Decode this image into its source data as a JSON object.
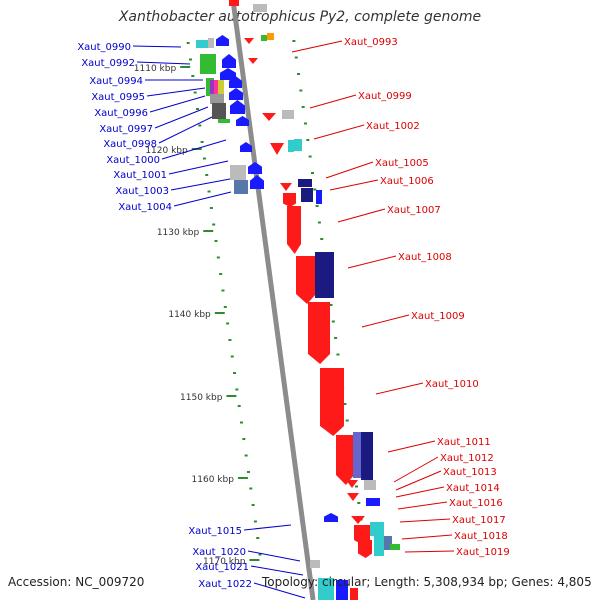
{
  "title": "Xanthobacter autotrophicus Py2, complete genome",
  "footer": {
    "accession_label": "Accession:",
    "accession": "NC_009720",
    "topology_label": "Topology:",
    "topology": "circular;",
    "length_label": "Length:",
    "length": "5,308,934 bp;",
    "genes_label": "Genes:",
    "genes": "4,805"
  },
  "colors": {
    "backbone": "#8c8c8c",
    "tick": "#2e8b2e",
    "left_label": "#0000cc",
    "right_label": "#dd0000",
    "red": "#ff1a1a",
    "blue": "#1a1aff",
    "navy": "#1a1a80",
    "cyan": "#33cccc",
    "gray": "#999999",
    "green": "#33bb33"
  },
  "kbp_ticks": [
    "1110 kbp",
    "1120 kbp",
    "1130 kbp",
    "1140 kbp",
    "1150 kbp",
    "1160 kbp",
    "1170 kbp"
  ],
  "left_genes": [
    "Xaut_0990",
    "Xaut_0992",
    "Xaut_0994",
    "Xaut_0995",
    "Xaut_0996",
    "Xaut_0997",
    "Xaut_0998",
    "Xaut_1000",
    "Xaut_1001",
    "Xaut_1003",
    "Xaut_1004",
    "Xaut_1015",
    "Xaut_1020",
    "Xaut_1021",
    "Xaut_1022"
  ],
  "right_genes": [
    "Xaut_0993",
    "Xaut_0999",
    "Xaut_1002",
    "Xaut_1005",
    "Xaut_1006",
    "Xaut_1007",
    "Xaut_1008",
    "Xaut_1009",
    "Xaut_1010",
    "Xaut_1011",
    "Xaut_1012",
    "Xaut_1013",
    "Xaut_1014",
    "Xaut_1016",
    "Xaut_1017",
    "Xaut_1018",
    "Xaut_1019"
  ]
}
